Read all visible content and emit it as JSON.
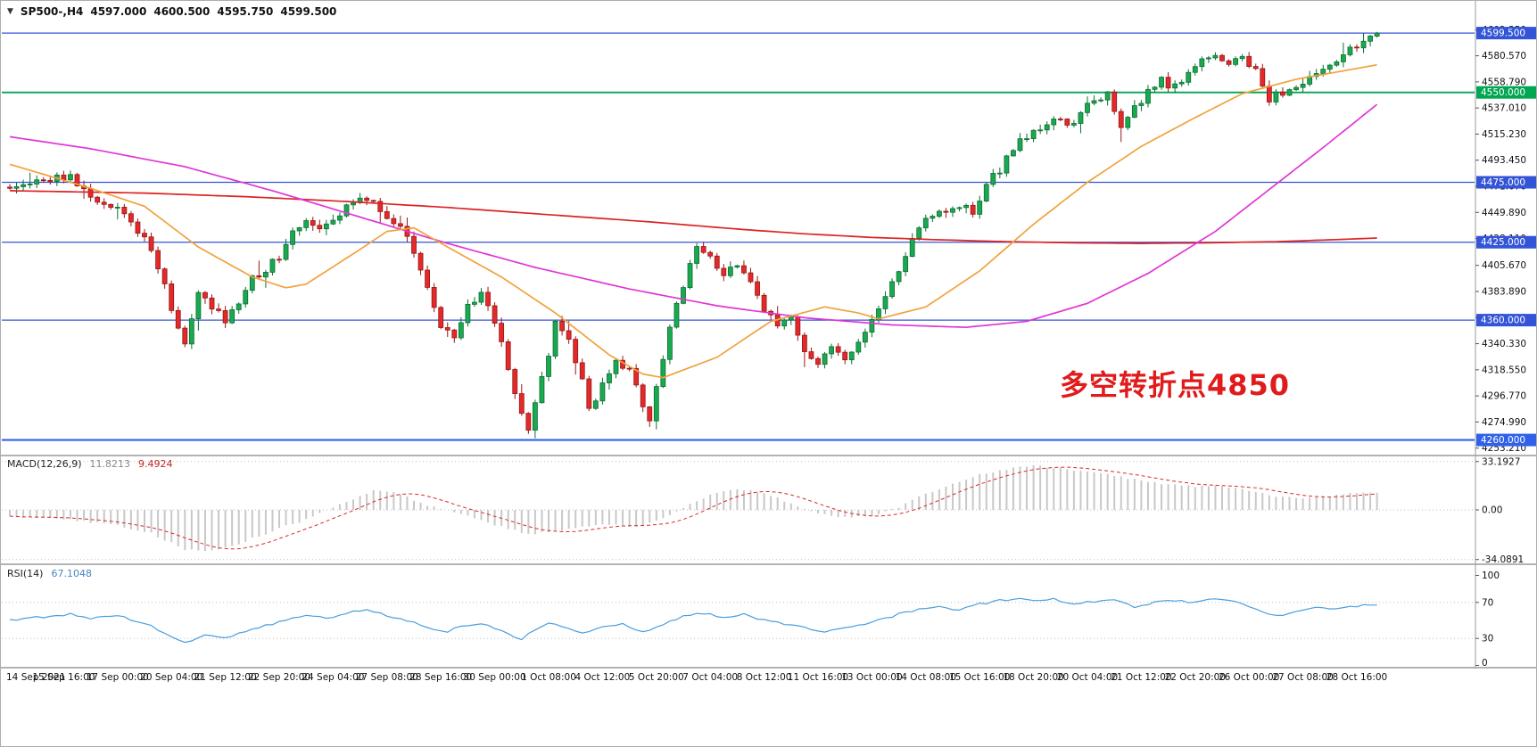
{
  "header": {
    "symbol": "SP500-,H4",
    "open": "4597.000",
    "high": "4600.500",
    "low": "4595.750",
    "close": "4599.500"
  },
  "annotation": {
    "text": "多空转折点4850",
    "color": "#e01b1b"
  },
  "colors": {
    "up": "#1aa850",
    "up_stroke": "#0a6e31",
    "down": "#e22a2a",
    "down_stroke": "#991515",
    "hline_blue": "#3354d6",
    "hline_blue_bright": "#2f62e8",
    "hline_green": "#00a651",
    "macd_hist": "#c8c8c8",
    "macd_signal": "#d92b2b",
    "rsi_line": "#4a9ede",
    "scale_text": "#111111",
    "axis_border": "#9a9a9a"
  },
  "price_scale": {
    "ticks": [
      {
        "v": 4602.35,
        "label": "4602.350"
      },
      {
        "v": 4580.57,
        "label": "4580.570"
      },
      {
        "v": 4558.79,
        "label": "4558.790"
      },
      {
        "v": 4537.01,
        "label": "4537.010"
      },
      {
        "v": 4515.23,
        "label": "4515.230"
      },
      {
        "v": 4493.45,
        "label": "4493.450"
      },
      {
        "v": 4471.67,
        "label": "4471.670"
      },
      {
        "v": 4449.89,
        "label": "4449.890"
      },
      {
        "v": 4428.11,
        "label": "4428.110"
      },
      {
        "v": 4405.67,
        "label": "4405.670"
      },
      {
        "v": 4383.89,
        "label": "4383.890"
      },
      {
        "v": 4362.09,
        "label": "4362.090"
      },
      {
        "v": 4340.33,
        "label": "4340.330"
      },
      {
        "v": 4318.55,
        "label": "4318.550"
      },
      {
        "v": 4296.77,
        "label": "4296.770"
      },
      {
        "v": 4274.99,
        "label": "4274.990"
      },
      {
        "v": 4253.21,
        "label": "4253.210"
      }
    ]
  },
  "hlines": [
    {
      "price": 4599.5,
      "label": "4599.500",
      "color": "#3354d6",
      "width": 1.3
    },
    {
      "price": 4550.0,
      "label": "4550.000",
      "color": "#00a651",
      "width": 1.8
    },
    {
      "price": 4475.0,
      "label": "4475.000",
      "color": "#3354d6",
      "width": 1.3
    },
    {
      "price": 4425.0,
      "label": "4425.000",
      "color": "#3354d6",
      "width": 1.3
    },
    {
      "price": 4360.0,
      "label": "4360.000",
      "color": "#3354d6",
      "width": 1.3
    },
    {
      "price": 4260.0,
      "label": "4260.000",
      "color": "#2f62e8",
      "width": 2.2
    }
  ],
  "time_axis": {
    "labels": [
      "14 Sep 2021",
      "15 Sep 16:00",
      "17 Sep 00:00",
      "20 Sep 04:00",
      "21 Sep 12:00",
      "22 Sep 20:00",
      "24 Sep 04:00",
      "27 Sep 08:00",
      "28 Sep 16:00",
      "30 Sep 00:00",
      "1 Oct 08:00",
      "4 Oct 12:00",
      "5 Oct 20:00",
      "7 Oct 04:00",
      "8 Oct 12:00",
      "11 Oct 16:00",
      "13 Oct 00:00",
      "14 Oct 08:00",
      "15 Oct 16:00",
      "18 Oct 20:00",
      "20 Oct 04:00",
      "21 Oct 12:00",
      "22 Oct 20:00",
      "26 Oct 00:00",
      "27 Oct 08:00",
      "28 Oct 16:00"
    ]
  },
  "indicators": {
    "macd": {
      "label": "MACD(12,26,9)",
      "value_main": "11.8213",
      "value_signal": "9.4924",
      "levels": [
        {
          "v": 33.1927,
          "label": "33.1927"
        },
        {
          "v": 0,
          "label": "0.00"
        },
        {
          "v": -34.0891,
          "label": "-34.0891"
        }
      ]
    },
    "rsi": {
      "label": "RSI(14)",
      "value": "67.1048",
      "levels": [
        {
          "v": 100,
          "label": "100",
          "line": false
        },
        {
          "v": 70,
          "label": "70",
          "line": true
        },
        {
          "v": 30,
          "label": "30",
          "line": true
        },
        {
          "v": 0,
          "label": "0",
          "line": false
        }
      ]
    }
  },
  "chart_data": {
    "type": "candlestick",
    "symbol": "SP500-",
    "timeframe": "H4",
    "n_candles": 204,
    "bars_per_time_label": 8,
    "price_range_visible": [
      4253.21,
      4602.35
    ],
    "last_candle": {
      "open": 4597.0,
      "high": 4600.5,
      "low": 4595.75,
      "close": 4599.5
    },
    "close_waypoints": [
      [
        0,
        4468
      ],
      [
        7,
        4478
      ],
      [
        9,
        4482
      ],
      [
        12,
        4462
      ],
      [
        17,
        4448
      ],
      [
        21,
        4420
      ],
      [
        23,
        4388
      ],
      [
        25,
        4352
      ],
      [
        26,
        4340
      ],
      [
        28,
        4382
      ],
      [
        32,
        4360
      ],
      [
        36,
        4394
      ],
      [
        40,
        4412
      ],
      [
        42,
        4432
      ],
      [
        44,
        4442
      ],
      [
        46,
        4438
      ],
      [
        49,
        4450
      ],
      [
        52,
        4464
      ],
      [
        54,
        4458
      ],
      [
        56,
        4448
      ],
      [
        58,
        4438
      ],
      [
        60,
        4418
      ],
      [
        62,
        4388
      ],
      [
        64,
        4356
      ],
      [
        66,
        4346
      ],
      [
        68,
        4372
      ],
      [
        70,
        4384
      ],
      [
        72,
        4356
      ],
      [
        74,
        4322
      ],
      [
        75,
        4296
      ],
      [
        77,
        4268
      ],
      [
        79,
        4310
      ],
      [
        81,
        4356
      ],
      [
        83,
        4344
      ],
      [
        85,
        4310
      ],
      [
        86,
        4284
      ],
      [
        88,
        4306
      ],
      [
        90,
        4328
      ],
      [
        92,
        4318
      ],
      [
        94,
        4288
      ],
      [
        95,
        4278
      ],
      [
        97,
        4330
      ],
      [
        99,
        4376
      ],
      [
        102,
        4418
      ],
      [
        104,
        4412
      ],
      [
        106,
        4398
      ],
      [
        108,
        4408
      ],
      [
        110,
        4394
      ],
      [
        112,
        4368
      ],
      [
        114,
        4354
      ],
      [
        116,
        4360
      ],
      [
        118,
        4336
      ],
      [
        120,
        4326
      ],
      [
        122,
        4338
      ],
      [
        124,
        4330
      ],
      [
        126,
        4342
      ],
      [
        128,
        4358
      ],
      [
        130,
        4378
      ],
      [
        132,
        4400
      ],
      [
        134,
        4426
      ],
      [
        136,
        4442
      ],
      [
        138,
        4448
      ],
      [
        140,
        4450
      ],
      [
        142,
        4456
      ],
      [
        143,
        4450
      ],
      [
        145,
        4474
      ],
      [
        147,
        4486
      ],
      [
        149,
        4504
      ],
      [
        151,
        4514
      ],
      [
        153,
        4520
      ],
      [
        155,
        4530
      ],
      [
        157,
        4520
      ],
      [
        159,
        4534
      ],
      [
        161,
        4542
      ],
      [
        163,
        4548
      ],
      [
        165,
        4524
      ],
      [
        167,
        4536
      ],
      [
        169,
        4550
      ],
      [
        171,
        4560
      ],
      [
        173,
        4554
      ],
      [
        175,
        4564
      ],
      [
        177,
        4576
      ],
      [
        179,
        4580
      ],
      [
        181,
        4574
      ],
      [
        183,
        4580
      ],
      [
        185,
        4568
      ],
      [
        187,
        4544
      ],
      [
        189,
        4550
      ],
      [
        191,
        4556
      ],
      [
        193,
        4562
      ],
      [
        195,
        4570
      ],
      [
        197,
        4576
      ],
      [
        199,
        4586
      ],
      [
        201,
        4594
      ],
      [
        203,
        4599.5
      ]
    ],
    "moving_averages": [
      {
        "name": "slow-red",
        "color": "#dd2222",
        "waypoints": [
          [
            0,
            4468
          ],
          [
            20,
            4466
          ],
          [
            35,
            4463
          ],
          [
            50,
            4459
          ],
          [
            65,
            4454
          ],
          [
            80,
            4448
          ],
          [
            95,
            4442
          ],
          [
            108,
            4436
          ],
          [
            118,
            4432
          ],
          [
            128,
            4429
          ],
          [
            138,
            4427
          ],
          [
            148,
            4425.5
          ],
          [
            158,
            4424.5
          ],
          [
            168,
            4424
          ],
          [
            178,
            4424.5
          ],
          [
            188,
            4425.5
          ],
          [
            196,
            4427
          ],
          [
            203,
            4428.5
          ]
        ]
      },
      {
        "name": "mid-magenta",
        "color": "#e136d6",
        "waypoints": [
          [
            0,
            4513
          ],
          [
            12,
            4503
          ],
          [
            26,
            4488
          ],
          [
            39,
            4468
          ],
          [
            52,
            4446
          ],
          [
            65,
            4424
          ],
          [
            78,
            4404
          ],
          [
            92,
            4386
          ],
          [
            105,
            4372
          ],
          [
            118,
            4362
          ],
          [
            131,
            4356
          ],
          [
            142,
            4354
          ],
          [
            151,
            4359
          ],
          [
            160,
            4374
          ],
          [
            169,
            4399
          ],
          [
            179,
            4434
          ],
          [
            187,
            4469
          ],
          [
            195,
            4504
          ],
          [
            203,
            4540
          ]
        ]
      },
      {
        "name": "fast-orange",
        "color": "#f0a23c",
        "waypoints": [
          [
            0,
            4490
          ],
          [
            12,
            4470
          ],
          [
            20,
            4455
          ],
          [
            28,
            4421
          ],
          [
            36,
            4396
          ],
          [
            41,
            4387
          ],
          [
            44,
            4390
          ],
          [
            52,
            4419
          ],
          [
            56,
            4434
          ],
          [
            60,
            4437
          ],
          [
            65,
            4421
          ],
          [
            73,
            4396
          ],
          [
            81,
            4366
          ],
          [
            89,
            4331
          ],
          [
            94,
            4315
          ],
          [
            97,
            4312
          ],
          [
            105,
            4329
          ],
          [
            113,
            4359
          ],
          [
            121,
            4371
          ],
          [
            126,
            4366
          ],
          [
            129,
            4361
          ],
          [
            136,
            4371
          ],
          [
            144,
            4401
          ],
          [
            152,
            4440
          ],
          [
            160,
            4475
          ],
          [
            168,
            4505
          ],
          [
            176,
            4529
          ],
          [
            183,
            4549
          ],
          [
            191,
            4561
          ],
          [
            203,
            4573
          ]
        ]
      }
    ],
    "macd_current": 11.8213,
    "macd_signal_current": 9.4924,
    "macd_waypoints": [
      [
        0,
        -4
      ],
      [
        7,
        -6
      ],
      [
        15,
        -10
      ],
      [
        21,
        -16
      ],
      [
        26,
        -27
      ],
      [
        30,
        -28
      ],
      [
        34,
        -23
      ],
      [
        40,
        -13
      ],
      [
        45,
        -5
      ],
      [
        50,
        6
      ],
      [
        54,
        13
      ],
      [
        58,
        11
      ],
      [
        62,
        3
      ],
      [
        66,
        -2
      ],
      [
        70,
        -7
      ],
      [
        74,
        -13
      ],
      [
        77,
        -17
      ],
      [
        81,
        -15
      ],
      [
        85,
        -12
      ],
      [
        89,
        -10
      ],
      [
        93,
        -12
      ],
      [
        97,
        -6
      ],
      [
        101,
        4
      ],
      [
        105,
        12
      ],
      [
        109,
        14
      ],
      [
        113,
        10
      ],
      [
        116,
        4
      ],
      [
        120,
        -2
      ],
      [
        124,
        -5
      ],
      [
        128,
        -4
      ],
      [
        132,
        2
      ],
      [
        135,
        9
      ],
      [
        140,
        18
      ],
      [
        144,
        24
      ],
      [
        148,
        28
      ],
      [
        152,
        30
      ],
      [
        156,
        29
      ],
      [
        159,
        27
      ],
      [
        163,
        24
      ],
      [
        168,
        20
      ],
      [
        172,
        17
      ],
      [
        176,
        16
      ],
      [
        179,
        17
      ],
      [
        183,
        15
      ],
      [
        187,
        10
      ],
      [
        191,
        8
      ],
      [
        195,
        9
      ],
      [
        199,
        11
      ],
      [
        203,
        11.8213
      ]
    ],
    "rsi_current": 67.1048,
    "rsi_waypoints": [
      [
        0,
        50
      ],
      [
        5,
        54
      ],
      [
        9,
        57
      ],
      [
        12,
        52
      ],
      [
        16,
        55
      ],
      [
        20,
        47
      ],
      [
        24,
        33
      ],
      [
        26,
        25
      ],
      [
        29,
        35
      ],
      [
        32,
        31
      ],
      [
        36,
        41
      ],
      [
        40,
        48
      ],
      [
        44,
        56
      ],
      [
        47,
        52
      ],
      [
        51,
        60
      ],
      [
        53,
        62
      ],
      [
        56,
        55
      ],
      [
        59,
        50
      ],
      [
        62,
        42
      ],
      [
        65,
        38
      ],
      [
        67,
        44
      ],
      [
        70,
        47
      ],
      [
        73,
        38
      ],
      [
        76,
        29
      ],
      [
        78,
        40
      ],
      [
        80,
        48
      ],
      [
        83,
        42
      ],
      [
        85,
        35
      ],
      [
        88,
        42
      ],
      [
        91,
        46
      ],
      [
        94,
        37
      ],
      [
        97,
        45
      ],
      [
        100,
        55
      ],
      [
        103,
        58
      ],
      [
        106,
        53
      ],
      [
        109,
        57
      ],
      [
        112,
        50
      ],
      [
        115,
        46
      ],
      [
        118,
        42
      ],
      [
        121,
        38
      ],
      [
        124,
        42
      ],
      [
        127,
        46
      ],
      [
        129,
        50
      ],
      [
        132,
        57
      ],
      [
        135,
        62
      ],
      [
        138,
        65
      ],
      [
        141,
        62
      ],
      [
        144,
        68
      ],
      [
        147,
        72
      ],
      [
        150,
        75
      ],
      [
        152,
        71
      ],
      [
        155,
        74
      ],
      [
        158,
        68
      ],
      [
        161,
        71
      ],
      [
        164,
        73
      ],
      [
        167,
        65
      ],
      [
        170,
        70
      ],
      [
        173,
        72
      ],
      [
        176,
        70
      ],
      [
        179,
        74
      ],
      [
        182,
        70
      ],
      [
        185,
        62
      ],
      [
        188,
        55
      ],
      [
        191,
        60
      ],
      [
        194,
        64
      ],
      [
        197,
        62
      ],
      [
        200,
        66
      ],
      [
        203,
        67.1048
      ]
    ]
  }
}
